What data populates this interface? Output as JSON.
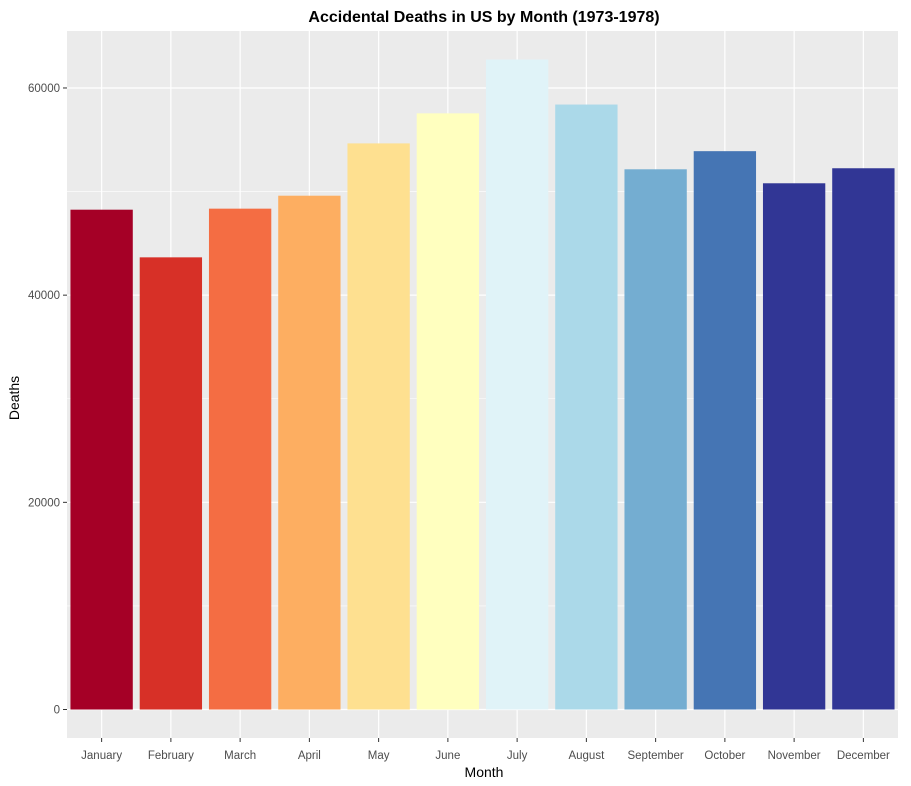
{
  "chart_data": {
    "type": "bar",
    "title": "Accidental Deaths in US by Month (1973-1978)",
    "xlabel": "Month",
    "ylabel": "Deaths",
    "categories": [
      "January",
      "February",
      "March",
      "April",
      "May",
      "June",
      "July",
      "August",
      "September",
      "October",
      "November",
      "December"
    ],
    "values": [
      48250,
      43650,
      48350,
      49600,
      54650,
      57550,
      62750,
      58400,
      52150,
      53900,
      50800,
      52250
    ],
    "colors": [
      "#A50026",
      "#D73027",
      "#F46D43",
      "#FDAE61",
      "#FEE090",
      "#FFFFBF",
      "#E0F3F8",
      "#ABD9E9",
      "#74ADD1",
      "#4575B4",
      "#313695",
      "#313695"
    ],
    "ylim": [
      -2750,
      65500
    ],
    "yticks": [
      0,
      20000,
      40000,
      60000
    ],
    "ytick_labels": [
      "0",
      "20000",
      "40000",
      "60000"
    ],
    "yminor": [
      10000,
      30000,
      50000
    ],
    "grid": true,
    "legend": "none",
    "panel_background": "#EBEBEB",
    "grid_color": "#FFFFFF"
  }
}
